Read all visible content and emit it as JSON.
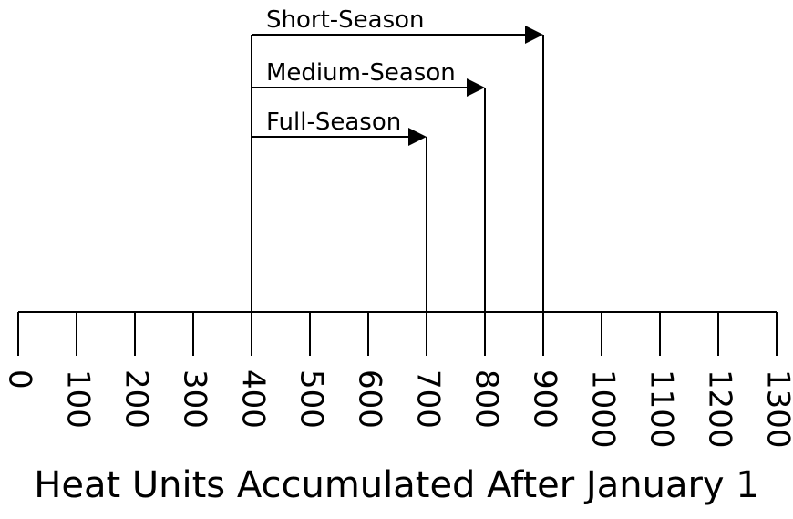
{
  "chart_data": {
    "type": "range",
    "xlabel": "Heat Units Accumulated After January 1",
    "xlim": [
      0,
      1300
    ],
    "xticks": [
      0,
      100,
      200,
      300,
      400,
      500,
      600,
      700,
      800,
      900,
      1000,
      1100,
      1200,
      1300
    ],
    "color": "#000000",
    "series": [
      {
        "name": "Short-Season",
        "values": [
          400,
          900
        ]
      },
      {
        "name": "Medium-Season",
        "values": [
          400,
          800
        ]
      },
      {
        "name": "Full-Season",
        "values": [
          400,
          700
        ]
      }
    ]
  }
}
